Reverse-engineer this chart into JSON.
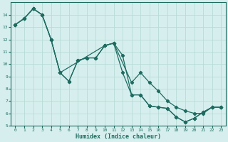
{
  "xlabel": "Humidex (Indice chaleur)",
  "xlim": [
    -0.5,
    23.5
  ],
  "ylim": [
    5,
    15
  ],
  "yticks": [
    5,
    6,
    7,
    8,
    9,
    10,
    11,
    12,
    13,
    14
  ],
  "xticks": [
    0,
    1,
    2,
    3,
    4,
    5,
    6,
    7,
    8,
    9,
    10,
    11,
    12,
    13,
    14,
    15,
    16,
    17,
    18,
    19,
    20,
    21,
    22,
    23
  ],
  "bg_color": "#d6efee",
  "line_color": "#1e6b60",
  "grid_color": "#b8dbd8",
  "series1_x": [
    0,
    1,
    2,
    3,
    4,
    5,
    6,
    7,
    8,
    9,
    10,
    11,
    12,
    13,
    14,
    15,
    16,
    17,
    18,
    19,
    20,
    21,
    22,
    23
  ],
  "series1_y": [
    13.2,
    13.7,
    14.5,
    14.0,
    12.0,
    9.3,
    8.6,
    10.3,
    10.5,
    10.5,
    11.5,
    11.7,
    10.7,
    7.5,
    7.5,
    6.6,
    6.5,
    6.4,
    5.7,
    5.3,
    5.6,
    6.1,
    6.5,
    6.5
  ],
  "series2_x": [
    0,
    1,
    2,
    3,
    4,
    5,
    6,
    7,
    8,
    9,
    10,
    11,
    12,
    13,
    14,
    15,
    16,
    17,
    18,
    19,
    20,
    21,
    22,
    23
  ],
  "series2_y": [
    13.2,
    13.7,
    14.5,
    14.0,
    12.0,
    9.3,
    8.6,
    10.3,
    10.5,
    10.5,
    11.5,
    11.7,
    9.3,
    7.5,
    7.5,
    6.6,
    6.5,
    6.4,
    5.7,
    5.3,
    5.6,
    6.1,
    6.5,
    6.5
  ],
  "series3_x": [
    0,
    1,
    2,
    3,
    4,
    5,
    10,
    11,
    13,
    14,
    15,
    16,
    17,
    18,
    19,
    20,
    21,
    22,
    23
  ],
  "series3_y": [
    13.2,
    13.7,
    14.5,
    14.0,
    12.0,
    9.3,
    11.5,
    11.7,
    8.5,
    9.3,
    8.5,
    7.8,
    7.0,
    6.5,
    6.2,
    6.0,
    6.0,
    6.5,
    6.5
  ],
  "marker": "D",
  "markersize": 2.2,
  "linewidth": 0.9
}
